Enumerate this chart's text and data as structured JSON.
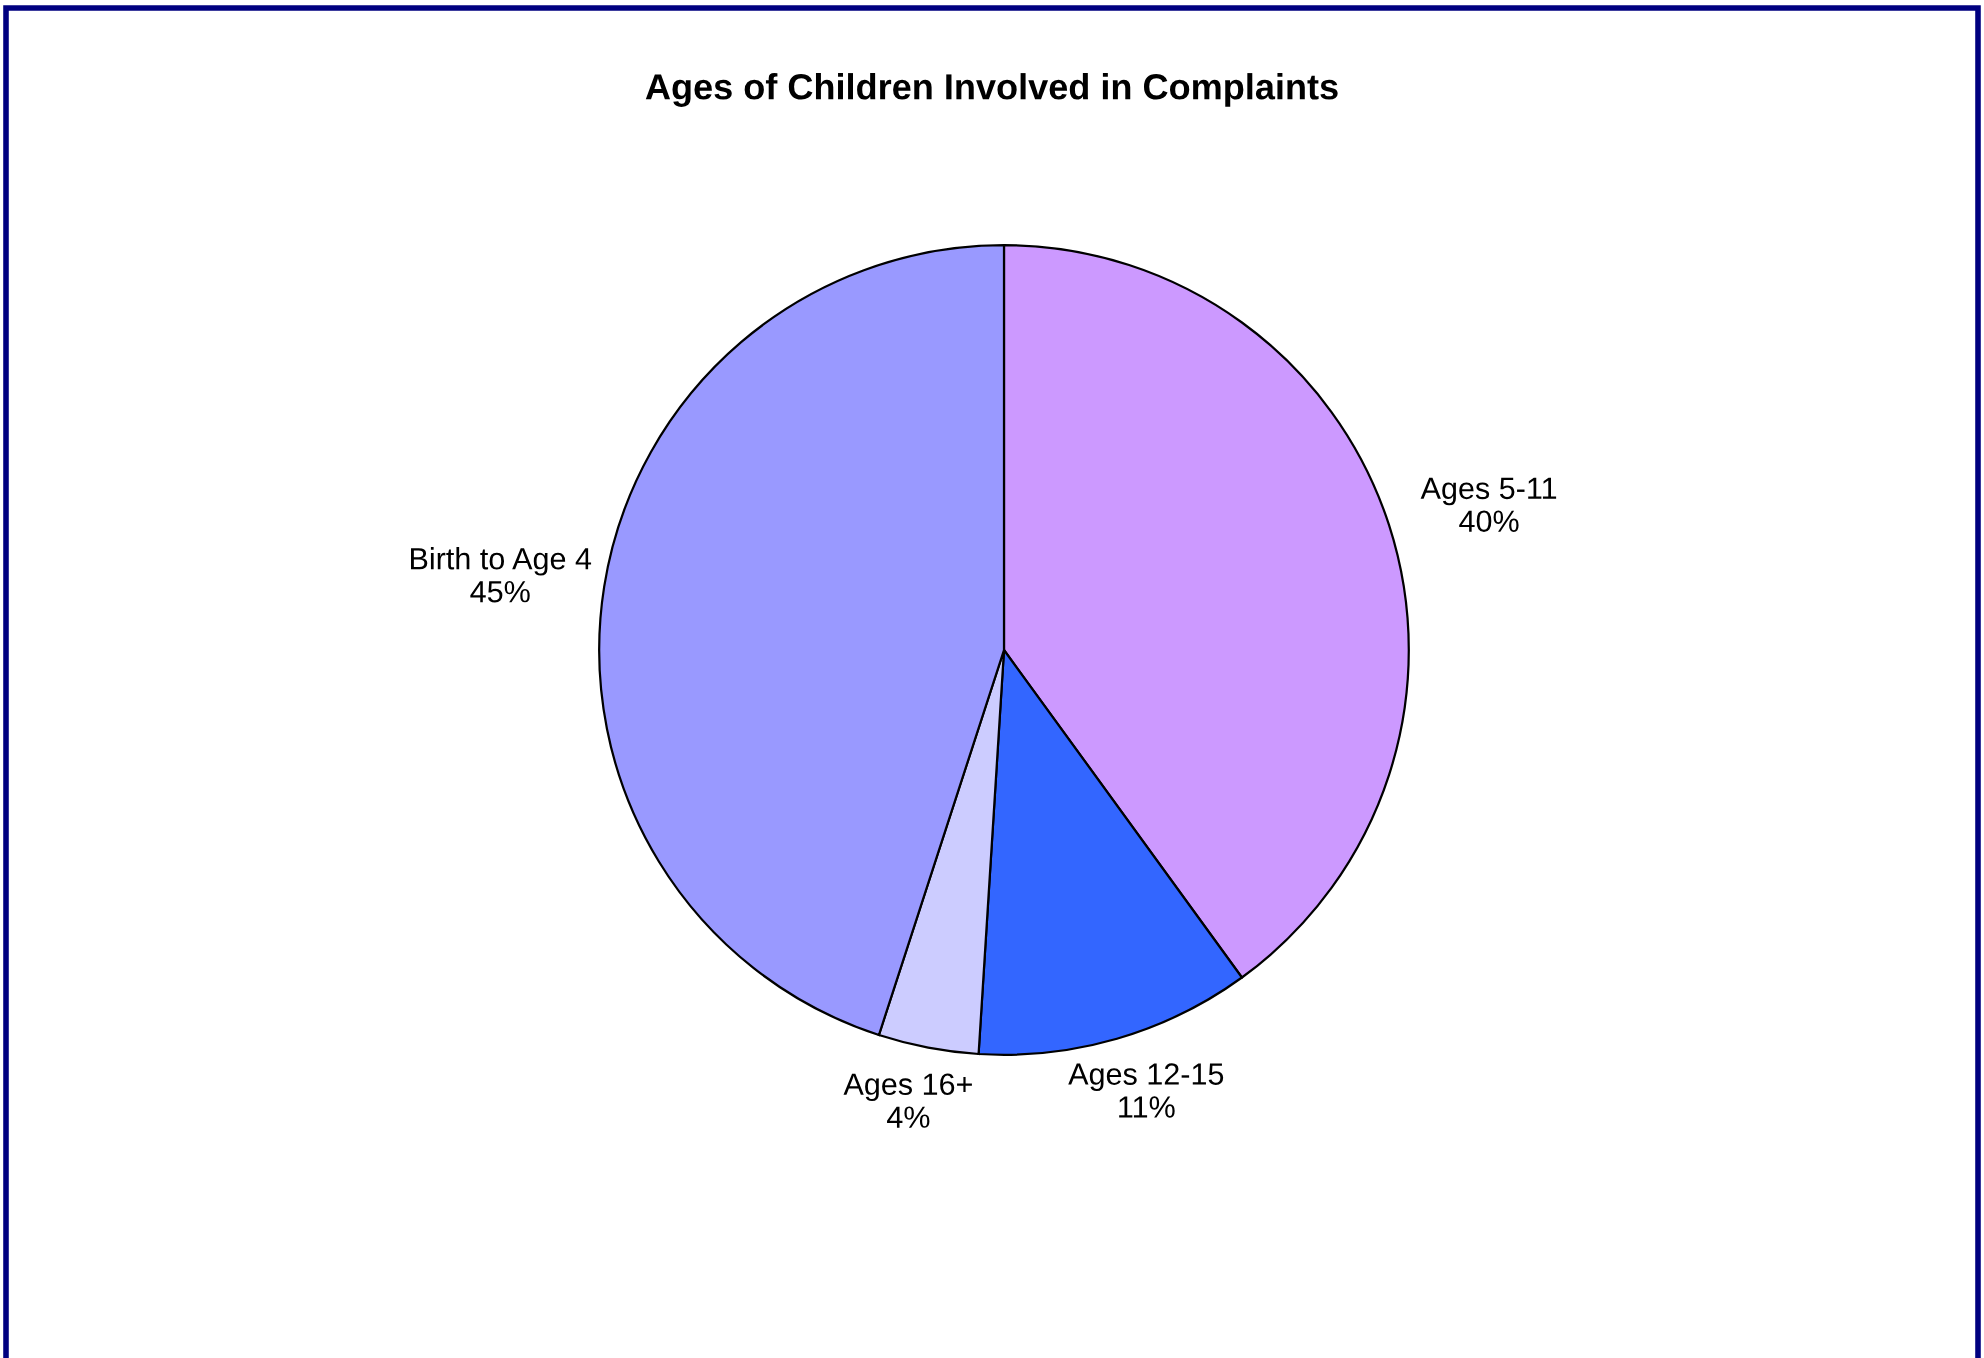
{
  "chart_data": {
    "type": "pie",
    "title": "Ages of Children Involved in Complaints",
    "categories": [
      "Ages 5-11",
      "Ages 12-15",
      "Ages 16+",
      "Birth to Age 4"
    ],
    "values": [
      40,
      11,
      4,
      45
    ],
    "value_labels": [
      "40%",
      "11%",
      "4%",
      "45%"
    ],
    "colors": [
      "#cc99ff",
      "#3366ff",
      "#ccccff",
      "#9999ff"
    ],
    "legend": false
  }
}
